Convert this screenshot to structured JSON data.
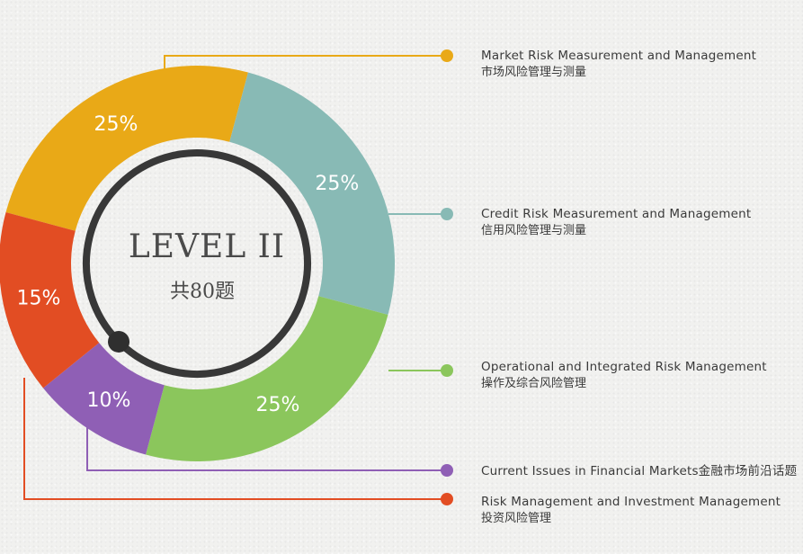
{
  "center": {
    "title": "LEVEL II",
    "subtitle": "共80题"
  },
  "chart_data": {
    "type": "pie",
    "donut": true,
    "title": "LEVEL II",
    "subtitle": "共80题",
    "series": [
      {
        "name": "Market Risk Measurement and Management",
        "name_zh": "市场风险管理与测量",
        "value": 25,
        "label": "25%",
        "color": "#e9a917"
      },
      {
        "name": "Credit Risk Measurement and Management",
        "name_zh": "信用风险管理与测量",
        "value": 25,
        "label": "25%",
        "color": "#88bab5"
      },
      {
        "name": "Operational and Integrated Risk Management",
        "name_zh": "操作及综合风险管理",
        "value": 25,
        "label": "25%",
        "color": "#8bc65c"
      },
      {
        "name": "Current Issues in Financial Markets金融市场前沿话题",
        "name_zh": "",
        "value": 10,
        "label": "10%",
        "color": "#8f5fb5"
      },
      {
        "name": "Risk Management and Investment Management",
        "name_zh": "投资风险管理",
        "value": 15,
        "label": "15%",
        "color": "#e24d23"
      }
    ],
    "legend_position": "right"
  }
}
